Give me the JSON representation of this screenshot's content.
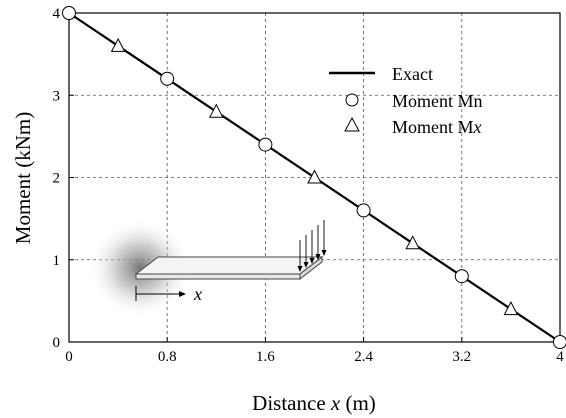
{
  "chart_data": {
    "type": "line",
    "title": "",
    "xlabel": {
      "prefix": "Distance ",
      "var": "x",
      "suffix": " (m)"
    },
    "ylabel": "Moment (kNm)",
    "xlim": [
      0,
      4
    ],
    "ylim": [
      0,
      4
    ],
    "x_ticks": [
      0,
      0.8,
      1.6,
      2.4,
      3.2,
      4
    ],
    "x_tick_labels": [
      "0",
      "0.8",
      "1.6",
      "2.4",
      "3.2",
      "4"
    ],
    "y_ticks": [
      0,
      1,
      2,
      3,
      4
    ],
    "y_tick_labels": [
      "0",
      "1",
      "2",
      "3",
      "4"
    ],
    "grid": true,
    "legend_position": "top-right",
    "series": [
      {
        "name": "Exact",
        "marker": "line",
        "x": [
          0,
          4
        ],
        "y": [
          4,
          0
        ]
      },
      {
        "name": "Moment Mn",
        "marker": "circle",
        "x": [
          0,
          0.8,
          1.6,
          2.4,
          3.2,
          4
        ],
        "y": [
          4,
          3.2,
          2.4,
          1.6,
          0.8,
          0
        ]
      },
      {
        "name": "Moment Mx",
        "name_prefix": "Moment M",
        "name_var": "x",
        "marker": "triangle",
        "x": [
          0.4,
          1.2,
          2.0,
          2.8,
          3.6
        ],
        "y": [
          3.6,
          2.8,
          2.0,
          1.2,
          0.4
        ]
      }
    ],
    "inset": {
      "label": "x"
    }
  }
}
